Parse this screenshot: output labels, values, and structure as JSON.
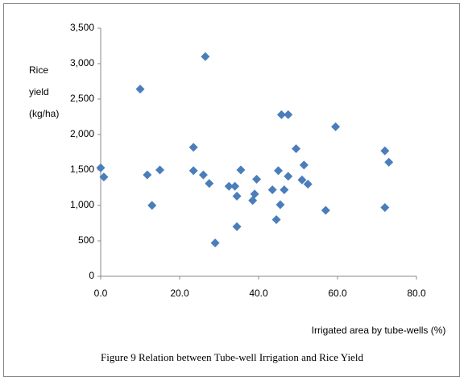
{
  "chart_data": {
    "type": "scatter",
    "caption": "Figure 9  Relation between Tube-well Irrigation and Rice Yield",
    "xlabel": "Irrigated area by tube-wells (%)",
    "ylabel": [
      "Rice",
      "yield",
      "(kg/ha)"
    ],
    "color": "#4a7ebb",
    "x": [
      0,
      0.8,
      10,
      11.8,
      13,
      15,
      23.5,
      23.5,
      26,
      26.5,
      27.5,
      29,
      32.5,
      34,
      34.5,
      34.5,
      35.5,
      38.5,
      39,
      39.5,
      43.5,
      44.5,
      45,
      45.5,
      45.8,
      46.5,
      47.5,
      47.5,
      49.5,
      51,
      51.5,
      52.5,
      57,
      59.5,
      72,
      72,
      73
    ],
    "values": [
      1530,
      1400,
      2640,
      1430,
      1000,
      1500,
      1820,
      1490,
      1430,
      3100,
      1310,
      470,
      1270,
      1270,
      1130,
      700,
      1500,
      1070,
      1160,
      1370,
      1220,
      800,
      1490,
      1010,
      2280,
      1220,
      2280,
      1410,
      1800,
      1360,
      1570,
      1300,
      930,
      2110,
      970,
      1770,
      1610
    ],
    "xlim": [
      0,
      80
    ],
    "xticks": [
      {
        "value": 0,
        "label": "0.0"
      },
      {
        "value": 20,
        "label": "20.0"
      },
      {
        "value": 40,
        "label": "40.0"
      },
      {
        "value": 60,
        "label": "60.0"
      },
      {
        "value": 80,
        "label": "80.0"
      }
    ],
    "ylim": [
      0,
      3500
    ],
    "yticks": [
      0,
      500,
      {
        "value": 1000,
        "label": "1,000"
      },
      {
        "value": 1500,
        "label": "1,500"
      },
      {
        "value": 2000,
        "label": "2,000"
      },
      {
        "value": 2500,
        "label": "2,500"
      },
      {
        "value": 3000,
        "label": "3,000"
      },
      {
        "value": 3500,
        "label": "3,500"
      }
    ],
    "grid": false
  }
}
